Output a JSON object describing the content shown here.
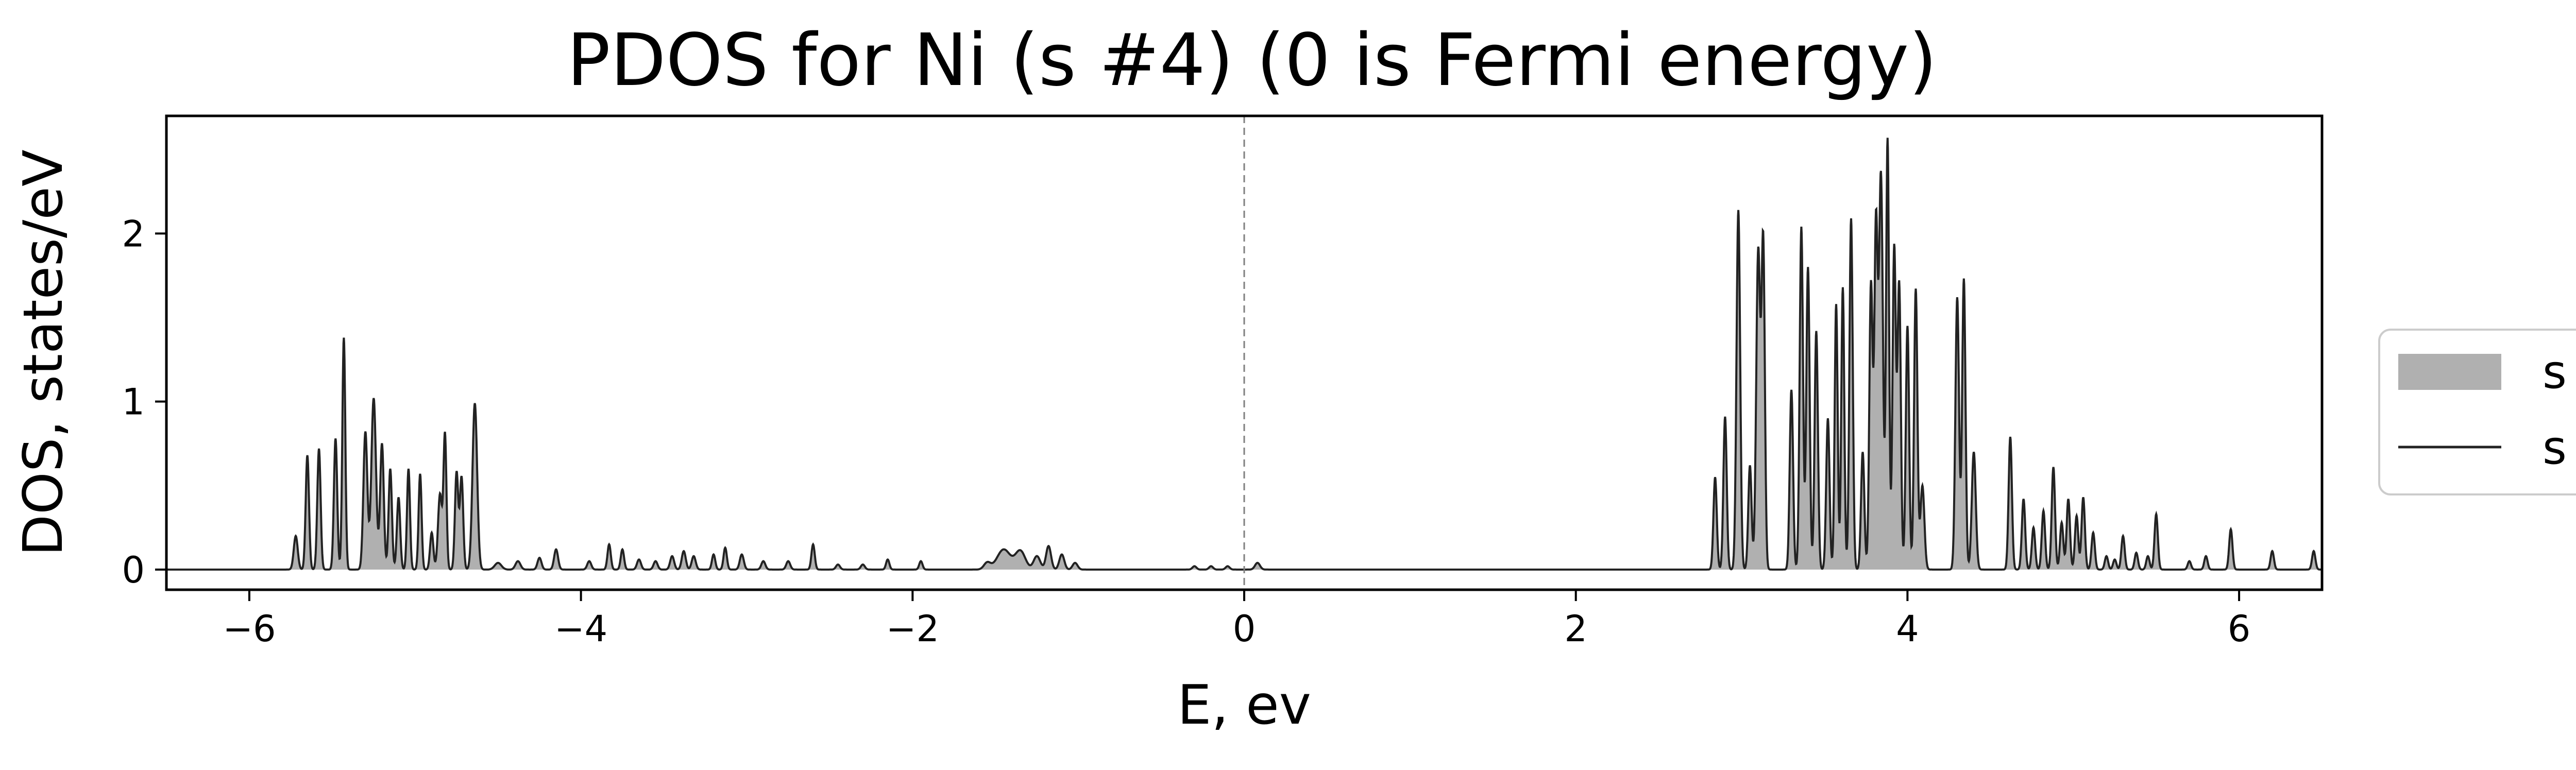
{
  "chart_data": {
    "type": "area",
    "title": "PDOS for Ni (s #4) (0 is Fermi energy)",
    "xlabel": "E, ev",
    "ylabel": "DOS, states/eV",
    "xlim": [
      -6.5,
      6.5
    ],
    "ylim": [
      -0.12,
      2.7
    ],
    "xticks": [
      -6,
      -4,
      -2,
      0,
      2,
      4,
      6
    ],
    "xtick_labels": [
      "−6",
      "−4",
      "−2",
      "0",
      "2",
      "4",
      "6"
    ],
    "yticks": [
      0,
      1,
      2
    ],
    "ytick_labels": [
      "0",
      "1",
      "2"
    ],
    "grid": false,
    "fermi_line": {
      "x": 0,
      "style": "dashed",
      "color": "#808080"
    },
    "legend": {
      "placement": "outside-right",
      "entries": [
        {
          "label": "s",
          "style": "fill",
          "color": "#b0b0b0"
        },
        {
          "label": "s",
          "style": "line",
          "color": "#222222"
        }
      ]
    },
    "series": [
      {
        "name": "s",
        "fill_color": "#b0b0b0",
        "line_color": "#222222",
        "peaks": [
          [
            -5.72,
            0.2,
            0.012
          ],
          [
            -5.65,
            0.68,
            0.01
          ],
          [
            -5.58,
            0.72,
            0.01
          ],
          [
            -5.48,
            0.78,
            0.01
          ],
          [
            -5.43,
            1.38,
            0.009
          ],
          [
            -5.3,
            0.82,
            0.012
          ],
          [
            -5.25,
            1.02,
            0.014
          ],
          [
            -5.2,
            0.75,
            0.011
          ],
          [
            -5.15,
            0.6,
            0.01
          ],
          [
            -5.1,
            0.43,
            0.01
          ],
          [
            -5.04,
            0.6,
            0.009
          ],
          [
            -4.97,
            0.57,
            0.009
          ],
          [
            -4.9,
            0.22,
            0.01
          ],
          [
            -4.85,
            0.45,
            0.012
          ],
          [
            -4.82,
            0.8,
            0.009
          ],
          [
            -4.75,
            0.58,
            0.01
          ],
          [
            -4.72,
            0.55,
            0.01
          ],
          [
            -4.64,
            0.99,
            0.014
          ],
          [
            -4.5,
            0.04,
            0.02
          ],
          [
            -4.38,
            0.05,
            0.015
          ],
          [
            -4.25,
            0.07,
            0.012
          ],
          [
            -4.15,
            0.12,
            0.012
          ],
          [
            -3.95,
            0.05,
            0.012
          ],
          [
            -3.83,
            0.15,
            0.01
          ],
          [
            -3.75,
            0.12,
            0.01
          ],
          [
            -3.65,
            0.06,
            0.012
          ],
          [
            -3.55,
            0.05,
            0.012
          ],
          [
            -3.45,
            0.08,
            0.012
          ],
          [
            -3.38,
            0.11,
            0.012
          ],
          [
            -3.32,
            0.08,
            0.012
          ],
          [
            -3.2,
            0.09,
            0.01
          ],
          [
            -3.13,
            0.13,
            0.01
          ],
          [
            -3.03,
            0.09,
            0.012
          ],
          [
            -2.9,
            0.05,
            0.012
          ],
          [
            -2.75,
            0.05,
            0.012
          ],
          [
            -2.6,
            0.15,
            0.01
          ],
          [
            -2.45,
            0.03,
            0.012
          ],
          [
            -2.3,
            0.03,
            0.012
          ],
          [
            -2.15,
            0.06,
            0.01
          ],
          [
            -1.95,
            0.05,
            0.01
          ],
          [
            -1.55,
            0.04,
            0.02
          ],
          [
            -1.45,
            0.12,
            0.04
          ],
          [
            -1.35,
            0.11,
            0.03
          ],
          [
            -1.25,
            0.08,
            0.02
          ],
          [
            -1.18,
            0.14,
            0.015
          ],
          [
            -1.1,
            0.09,
            0.015
          ],
          [
            -1.02,
            0.04,
            0.015
          ],
          [
            -0.3,
            0.02,
            0.012
          ],
          [
            -0.2,
            0.02,
            0.012
          ],
          [
            -0.1,
            0.02,
            0.012
          ],
          [
            0.08,
            0.04,
            0.015
          ],
          [
            2.84,
            0.55,
            0.01
          ],
          [
            2.9,
            0.91,
            0.01
          ],
          [
            2.98,
            2.14,
            0.011
          ],
          [
            3.05,
            0.62,
            0.01
          ],
          [
            3.1,
            1.9,
            0.012
          ],
          [
            3.13,
            1.93,
            0.01
          ],
          [
            3.3,
            1.07,
            0.01
          ],
          [
            3.36,
            2.04,
            0.01
          ],
          [
            3.4,
            1.8,
            0.01
          ],
          [
            3.45,
            1.42,
            0.01
          ],
          [
            3.52,
            0.9,
            0.01
          ],
          [
            3.57,
            1.58,
            0.009
          ],
          [
            3.61,
            1.68,
            0.009
          ],
          [
            3.66,
            2.09,
            0.01
          ],
          [
            3.73,
            0.7,
            0.01
          ],
          [
            3.78,
            1.7,
            0.01
          ],
          [
            3.81,
            2.02,
            0.01
          ],
          [
            3.84,
            2.35,
            0.012
          ],
          [
            3.88,
            2.56,
            0.009
          ],
          [
            3.92,
            1.92,
            0.01
          ],
          [
            3.95,
            1.7,
            0.01
          ],
          [
            4.0,
            1.45,
            0.01
          ],
          [
            4.05,
            1.67,
            0.01
          ],
          [
            4.09,
            0.5,
            0.012
          ],
          [
            4.3,
            1.62,
            0.011
          ],
          [
            4.34,
            1.73,
            0.01
          ],
          [
            4.4,
            0.7,
            0.012
          ],
          [
            4.62,
            0.79,
            0.01
          ],
          [
            4.7,
            0.42,
            0.01
          ],
          [
            4.76,
            0.25,
            0.01
          ],
          [
            4.82,
            0.35,
            0.01
          ],
          [
            4.88,
            0.61,
            0.01
          ],
          [
            4.93,
            0.28,
            0.01
          ],
          [
            4.97,
            0.42,
            0.01
          ],
          [
            5.02,
            0.32,
            0.01
          ],
          [
            5.06,
            0.43,
            0.01
          ],
          [
            5.12,
            0.22,
            0.01
          ],
          [
            5.2,
            0.08,
            0.01
          ],
          [
            5.25,
            0.06,
            0.01
          ],
          [
            5.3,
            0.2,
            0.01
          ],
          [
            5.38,
            0.1,
            0.01
          ],
          [
            5.45,
            0.08,
            0.01
          ],
          [
            5.5,
            0.33,
            0.01
          ],
          [
            5.7,
            0.05,
            0.01
          ],
          [
            5.8,
            0.08,
            0.01
          ],
          [
            5.95,
            0.24,
            0.01
          ],
          [
            6.2,
            0.11,
            0.01
          ],
          [
            6.45,
            0.11,
            0.01
          ]
        ]
      }
    ]
  }
}
